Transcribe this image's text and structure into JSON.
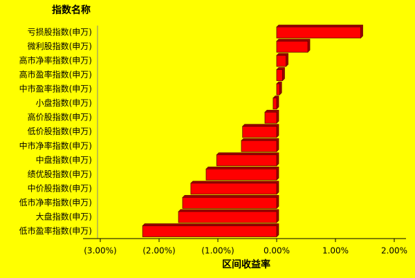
{
  "chart_data": {
    "type": "barh",
    "title": "指数名称",
    "x_label": "区间收益率",
    "color": "#ff0000",
    "categories": [
      "亏损股指数(申万)",
      "微利股指数(申万)",
      "高市净率指数(申万)",
      "高市盈率指数(申万)",
      "中市盈率指数(申万)",
      "小盘指数(申万)",
      "高价股指数(申万)",
      "低价股指数(申万)",
      "中市净率指数(申万)",
      "中盘指数(申万)",
      "绩优股指数(申万)",
      "中价股指数(申万)",
      "低市净率指数(申万)",
      "大盘指数(申万)",
      "低市盈率指数(申万)"
    ],
    "values": [
      1.43,
      0.53,
      0.16,
      0.1,
      0.05,
      -0.06,
      -0.2,
      -0.58,
      -0.6,
      -1.02,
      -1.2,
      -1.46,
      -1.6,
      -1.67,
      -2.28
    ],
    "xlim": [
      -3.2,
      2.2
    ],
    "xticks": [
      {
        "value": -3,
        "label": "(3.00%)"
      },
      {
        "value": -2,
        "label": "(2.00%)"
      },
      {
        "value": -1,
        "label": "(1.00%)"
      },
      {
        "value": 0,
        "label": "0.00%"
      },
      {
        "value": 1,
        "label": "1.00%"
      },
      {
        "value": 2,
        "label": "2.00%"
      }
    ]
  }
}
